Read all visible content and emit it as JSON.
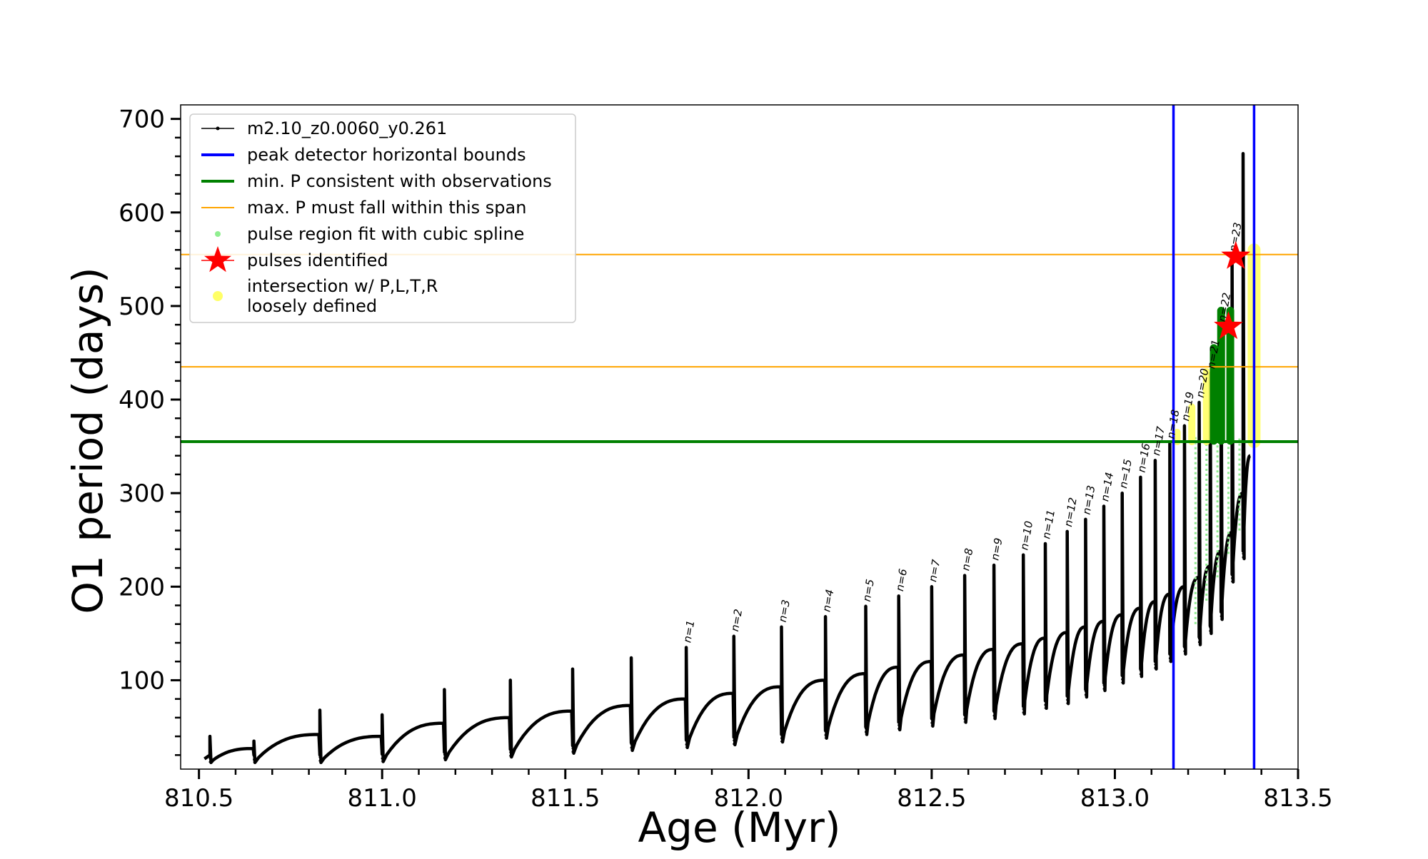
{
  "chart_data": {
    "type": "line",
    "xlabel": "Age (Myr)",
    "ylabel": "O1 period (days)",
    "xlim": [
      810.45,
      813.5
    ],
    "ylim": [
      5,
      715
    ],
    "x_ticks": [
      810.5,
      811.0,
      811.5,
      812.0,
      812.5,
      813.0,
      813.5
    ],
    "x_tick_labels": [
      "810.5",
      "811.0",
      "811.5",
      "812.0",
      "812.5",
      "813.0",
      "813.5"
    ],
    "y_ticks": [
      100,
      200,
      300,
      400,
      500,
      600,
      700
    ],
    "y_tick_labels": [
      "100",
      "200",
      "300",
      "400",
      "500",
      "600",
      "700"
    ],
    "grid": false,
    "legend_position": "top-left",
    "colors": {
      "series": "#000000",
      "bounds": "#0000ff",
      "min_p": "#008000",
      "max_p": "#ffa500",
      "spline": "#90ee90",
      "pulses": "#ff0000",
      "intersection": "#ffff66"
    },
    "series": [
      {
        "name": "m2.10_z0.0060_y0.261",
        "pulses": [
          {
            "x": 810.53,
            "peak": 40,
            "min": 12,
            "end": 27
          },
          {
            "x": 810.65,
            "peak": 35,
            "min": 12,
            "end": 42
          },
          {
            "x": 810.83,
            "peak": 68,
            "min": 12,
            "end": 40
          },
          {
            "x": 811.0,
            "peak": 63,
            "min": 13,
            "end": 54
          },
          {
            "x": 811.17,
            "peak": 90,
            "min": 15,
            "end": 60
          },
          {
            "x": 811.35,
            "peak": 100,
            "min": 18,
            "end": 67
          },
          {
            "x": 811.52,
            "peak": 112,
            "min": 22,
            "end": 73
          },
          {
            "x": 811.68,
            "peak": 124,
            "min": 25,
            "end": 80
          },
          {
            "x": 811.83,
            "peak": 135,
            "min": 28,
            "end": 86
          },
          {
            "x": 811.96,
            "peak": 147,
            "min": 31,
            "end": 93
          },
          {
            "x": 812.09,
            "peak": 157,
            "min": 34,
            "end": 100
          },
          {
            "x": 812.21,
            "peak": 168,
            "min": 38,
            "end": 107
          },
          {
            "x": 812.32,
            "peak": 179,
            "min": 42,
            "end": 114
          },
          {
            "x": 812.41,
            "peak": 190,
            "min": 47,
            "end": 120
          },
          {
            "x": 812.5,
            "peak": 200,
            "min": 51,
            "end": 127
          },
          {
            "x": 812.59,
            "peak": 212,
            "min": 55,
            "end": 133
          },
          {
            "x": 812.67,
            "peak": 223,
            "min": 59,
            "end": 139
          },
          {
            "x": 812.75,
            "peak": 234,
            "min": 64,
            "end": 145
          },
          {
            "x": 812.81,
            "peak": 246,
            "min": 70,
            "end": 151
          },
          {
            "x": 812.87,
            "peak": 259,
            "min": 75,
            "end": 157
          },
          {
            "x": 812.92,
            "peak": 272,
            "min": 82,
            "end": 163
          },
          {
            "x": 812.97,
            "peak": 286,
            "min": 89,
            "end": 170
          },
          {
            "x": 813.02,
            "peak": 300,
            "min": 97,
            "end": 177
          },
          {
            "x": 813.07,
            "peak": 317,
            "min": 104,
            "end": 184
          },
          {
            "x": 813.11,
            "peak": 335,
            "min": 112,
            "end": 192
          },
          {
            "x": 813.15,
            "peak": 353,
            "min": 120,
            "end": 200
          },
          {
            "x": 813.19,
            "peak": 372,
            "min": 128,
            "end": 210
          },
          {
            "x": 813.23,
            "peak": 397,
            "min": 138,
            "end": 222
          },
          {
            "x": 813.26,
            "peak": 428,
            "min": 150,
            "end": 238
          },
          {
            "x": 813.29,
            "peak": 478,
            "min": 165,
            "end": 258
          },
          {
            "x": 813.32,
            "peak": 553,
            "min": 205,
            "end": 300
          },
          {
            "x": 813.35,
            "peak": 663,
            "min": 230,
            "end": 340
          }
        ]
      }
    ],
    "bounds_x": [
      813.16,
      813.38
    ],
    "min_p": 355,
    "max_p_span": [
      435,
      555
    ],
    "pulses_identified": [
      {
        "x": 813.31,
        "y": 478
      },
      {
        "x": 813.33,
        "y": 553
      }
    ],
    "pulse_labels": [
      "n=1",
      "n=2",
      "n=3",
      "n=4",
      "n=5",
      "n=6",
      "n=7",
      "n=8",
      "n=9",
      "n=10",
      "n=11",
      "n=12",
      "n=13",
      "n=14",
      "n=15",
      "n=16",
      "n=17",
      "n=18",
      "n=19",
      "n=20",
      "n=21",
      "n=22",
      "n=23"
    ],
    "legend": [
      {
        "label": "m2.10_z0.0060_y0.261",
        "marker": "line-dot",
        "color": "#000000"
      },
      {
        "label": "peak detector horizontal bounds",
        "marker": "line",
        "color": "#0000ff"
      },
      {
        "label": "min. P consistent with observations",
        "marker": "line",
        "color": "#008000"
      },
      {
        "label": "max. P must fall within this span",
        "marker": "thin-line",
        "color": "#ffa500"
      },
      {
        "label": "pulse region fit with cubic spline",
        "marker": "dot",
        "color": "#90ee90"
      },
      {
        "label": "pulses identified",
        "marker": "star",
        "color": "#ff0000"
      },
      {
        "label": "intersection w/ P,L,T,R",
        "marker": "circle",
        "color": "#ffff66"
      },
      {
        "label": "loosely defined",
        "marker": "none",
        "color": "#ffff66"
      }
    ]
  }
}
